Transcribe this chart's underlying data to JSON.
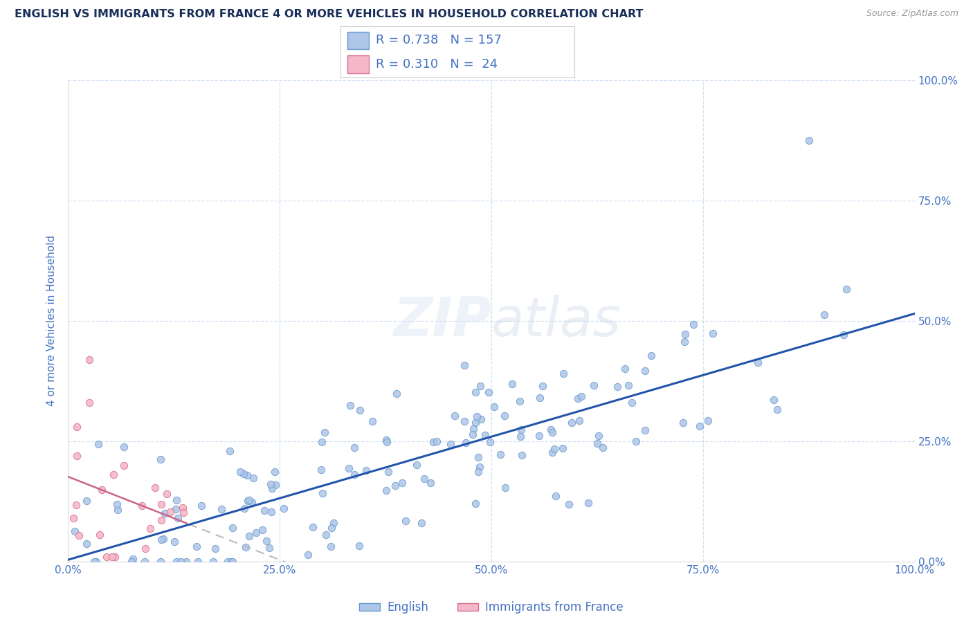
{
  "title": "ENGLISH VS IMMIGRANTS FROM FRANCE 4 OR MORE VEHICLES IN HOUSEHOLD CORRELATION CHART",
  "source": "Source: ZipAtlas.com",
  "ylabel": "4 or more Vehicles in Household",
  "x_min": 0.0,
  "x_max": 1.0,
  "y_min": 0.0,
  "y_max": 1.0,
  "x_tick_labels": [
    "0.0%",
    "25.0%",
    "50.0%",
    "75.0%",
    "100.0%"
  ],
  "x_tick_vals": [
    0.0,
    0.25,
    0.5,
    0.75,
    1.0
  ],
  "y_tick_labels_right": [
    "0.0%",
    "25.0%",
    "50.0%",
    "75.0%",
    "100.0%"
  ],
  "y_tick_vals": [
    0.0,
    0.25,
    0.5,
    0.75,
    1.0
  ],
  "english_R": 0.738,
  "english_N": 157,
  "french_R": 0.31,
  "french_N": 24,
  "legend_labels": [
    "English",
    "Immigrants from France"
  ],
  "english_color": "#aec6e8",
  "english_edge_color": "#6699cc",
  "french_color": "#f4b8c8",
  "french_edge_color": "#d97090",
  "english_line_color": "#2255aa",
  "french_line_color": "#cc6688",
  "french_trendline_color": "#ddbbcc",
  "watermark_text": "ZIPatlas",
  "title_color": "#1a2e5a",
  "axis_label_color": "#4472c4",
  "tick_label_color": "#4472c4",
  "grid_color": "#c8d8ee",
  "background_color": "#ffffff",
  "legend_box_color": "#ffffff",
  "legend_border_color": "#cccccc"
}
